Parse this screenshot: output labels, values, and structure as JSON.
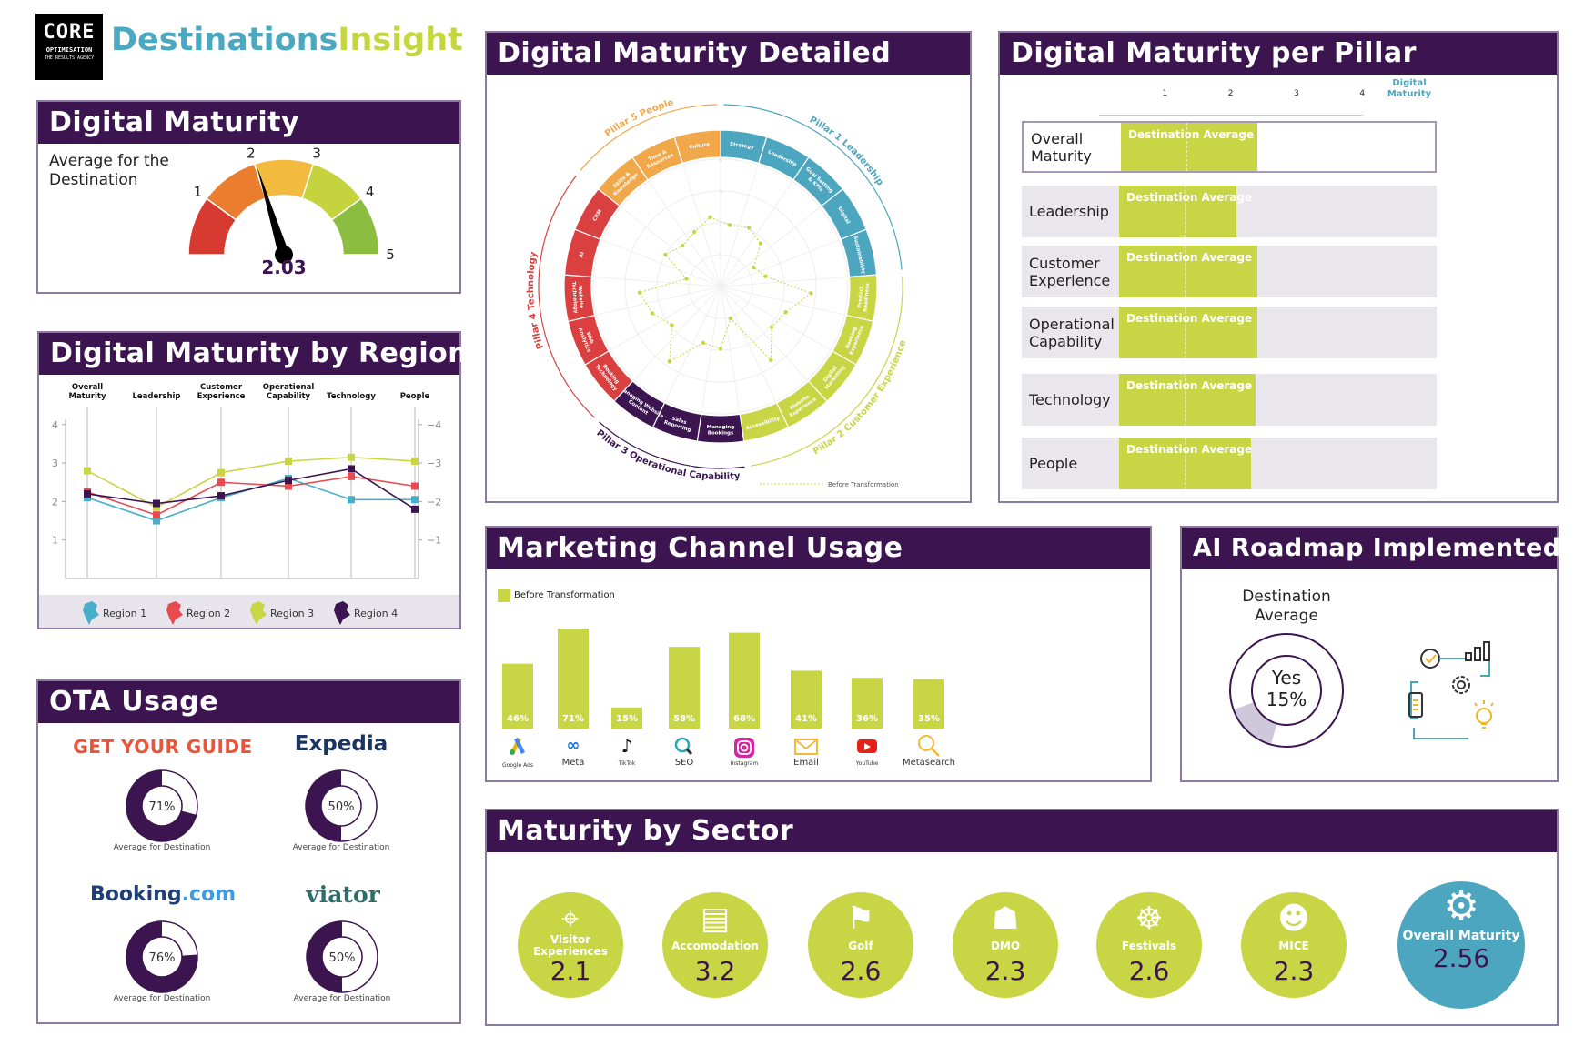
{
  "brand": {
    "logo_main": "CORE",
    "logo_sub": "OPTIMISATION",
    "logo_tag": "THE RESULTS AGENCY",
    "title_a": "Destinations",
    "title_b": "Insight",
    "colors": {
      "a": "#4aa8c0",
      "b": "#c5d73f"
    }
  },
  "colors": {
    "purple": "#3b1450",
    "green": "#c8d645",
    "blue": "#4da6bf",
    "red": "#d9403f",
    "orange": "#f0a84a"
  },
  "digital_maturity": {
    "title": "Digital Maturity",
    "label": "Average for the Destination",
    "value": "2.03",
    "gauge": {
      "value": 2.03,
      "min": 0,
      "max": 5,
      "ticks": [
        "1",
        "2",
        "3",
        "4",
        "5"
      ],
      "colors": [
        "#d63a30",
        "#ea7d2e",
        "#f2bb3f",
        "#c5d33f",
        "#8bbd40"
      ]
    }
  },
  "region": {
    "title": "Digital Maturity by Region"
  },
  "detailed": {
    "title": "Digital Maturity Detailed"
  },
  "pillar": {
    "title": "Digital Maturity per Pillar"
  },
  "marketing": {
    "title": "Marketing Channel Usage"
  },
  "ota": {
    "title": "OTA Usage",
    "caption": "Average for Destination",
    "items": [
      {
        "brand": "GET YOUR GUIDE",
        "color": "#e8553a",
        "value": 71,
        "label": "71%"
      },
      {
        "brand": "Expedia",
        "color": "#1c3560",
        "value": 50,
        "label": "50%"
      },
      {
        "brand_a": "Booking",
        "brand_b": ".com",
        "color": "#1e3f78",
        "color_b": "#3f9be0",
        "value": 76,
        "label": "76%"
      },
      {
        "brand": "viator",
        "color": "#2c6f6a",
        "value": 50,
        "label": "50%"
      }
    ]
  },
  "ai": {
    "title": "AI Roadmap Implemented",
    "label": "Destination Average",
    "answer": "Yes",
    "value_label": "15%",
    "value": 15,
    "icon": "workflow-icon"
  },
  "sector": {
    "title": "Maturity by Sector",
    "items": [
      {
        "name": "Visitor Experiences",
        "value": "2.1",
        "icon": "map-pin-icon"
      },
      {
        "name": "Accomodation",
        "value": "3.2",
        "icon": "bed-icon"
      },
      {
        "name": "Golf",
        "value": "2.6",
        "icon": "golf-flag-icon"
      },
      {
        "name": "DMO",
        "value": "2.3",
        "icon": "region-map-icon"
      },
      {
        "name": "Festivals",
        "value": "2.6",
        "icon": "ferris-wheel-icon"
      },
      {
        "name": "MICE",
        "value": "2.3",
        "icon": "people-group-icon"
      },
      {
        "name": "Overall Maturity",
        "value": "2.56",
        "icon": "gear-icon"
      }
    ]
  },
  "chart_data": [
    {
      "type": "line",
      "id": "region",
      "categories": [
        "Overall Maturity",
        "Leadership",
        "Customer Experience",
        "Operational Capability",
        "Technology",
        "People"
      ],
      "ylim": [
        0,
        4
      ],
      "yticks": [
        "1",
        "2",
        "3",
        "4"
      ],
      "grid": false,
      "legend": "bottom",
      "series": [
        {
          "name": "Region 1",
          "color": "#4aaec8",
          "values": [
            2.1,
            1.5,
            2.1,
            2.6,
            2.05,
            2.05
          ]
        },
        {
          "name": "Region 2",
          "color": "#e84a4f",
          "values": [
            2.25,
            1.65,
            2.5,
            2.4,
            2.65,
            2.4
          ]
        },
        {
          "name": "Region 3",
          "color": "#c8d645",
          "values": [
            2.8,
            1.85,
            2.75,
            3.05,
            3.15,
            3.05
          ]
        },
        {
          "name": "Region 4",
          "color": "#3b1450",
          "values": [
            2.2,
            1.95,
            2.15,
            2.55,
            2.85,
            1.8
          ]
        }
      ]
    },
    {
      "type": "radar",
      "id": "detailed",
      "rlim": [
        0,
        4
      ],
      "rticks": [
        "1",
        "2",
        "3",
        "4"
      ],
      "series_name": "Before Transformation",
      "pillars": [
        {
          "name": "Pillar 1 Leadership",
          "color": "#4da6bf",
          "categories": [
            "Strategy",
            "Leadership",
            "Goal Setting & KPIs",
            "Digital",
            "Sustainability"
          ]
        },
        {
          "name": "Pillar 2 Customer Experience",
          "color": "#c8d645",
          "categories": [
            "Product Readiness",
            "Booking Experience",
            "Digital Marketing",
            "Website Experience",
            "Accessibility"
          ]
        },
        {
          "name": "Pillar 3 Operational Capability",
          "color": "#3b1450",
          "categories": [
            "Managing Bookings",
            "Sales Reporting",
            "Managing Website Content"
          ]
        },
        {
          "name": "Pillar 4 Technology",
          "color": "#d9403f",
          "categories": [
            "Booking Technology",
            "Web Analytics",
            "Website Technology",
            "AI",
            "CRM"
          ]
        },
        {
          "name": "Pillar 5 People",
          "color": "#f0a84a",
          "categories": [
            "Skills & Knowledge",
            "Time & Resources",
            "Culture"
          ]
        }
      ],
      "values": [
        1.95,
        2.05,
        1.85,
        1.2,
        1.45,
        2.85,
        2.2,
        2.05,
        2.8,
        1.05,
        1.95,
        1.85,
        2.85,
        1.95,
        2.3,
        2.55,
        1.1,
        2.0,
        1.75,
        1.9,
        2.2
      ]
    },
    {
      "type": "bar",
      "id": "pillar",
      "orientation": "horizontal",
      "xlabel": "Digital Maturity",
      "xticks": [
        "1",
        "2",
        "3",
        "4"
      ],
      "xlim": [
        0,
        4
      ],
      "bar_label": "Destination Average",
      "categories": [
        "Overall Maturity",
        "Leadership",
        "Customer Experience",
        "Operational Capability",
        "Technology",
        "People"
      ],
      "values": [
        2.08,
        1.78,
        2.1,
        2.1,
        2.07,
        2.0
      ]
    },
    {
      "type": "bar",
      "id": "marketing",
      "legend": "Before Transformation",
      "ylim": [
        0,
        100
      ],
      "categories": [
        {
          "label": "Google Ads",
          "icon": "google-ads-icon"
        },
        {
          "label": "Meta",
          "icon": "meta-icon"
        },
        {
          "label": "TikTok",
          "icon": "tiktok-icon"
        },
        {
          "label": "SEO",
          "icon": "seo-icon"
        },
        {
          "label": "Instagram",
          "icon": "instagram-icon"
        },
        {
          "label": "Email",
          "icon": "email-icon"
        },
        {
          "label": "YouTube",
          "icon": "youtube-icon"
        },
        {
          "label": "Metasearch",
          "icon": "metasearch-icon"
        }
      ],
      "values": [
        46,
        71,
        15,
        58,
        68,
        41,
        36,
        35
      ],
      "labels": [
        "46%",
        "71%",
        "15%",
        "58%",
        "68%",
        "41%",
        "36%",
        "35%"
      ]
    }
  ]
}
